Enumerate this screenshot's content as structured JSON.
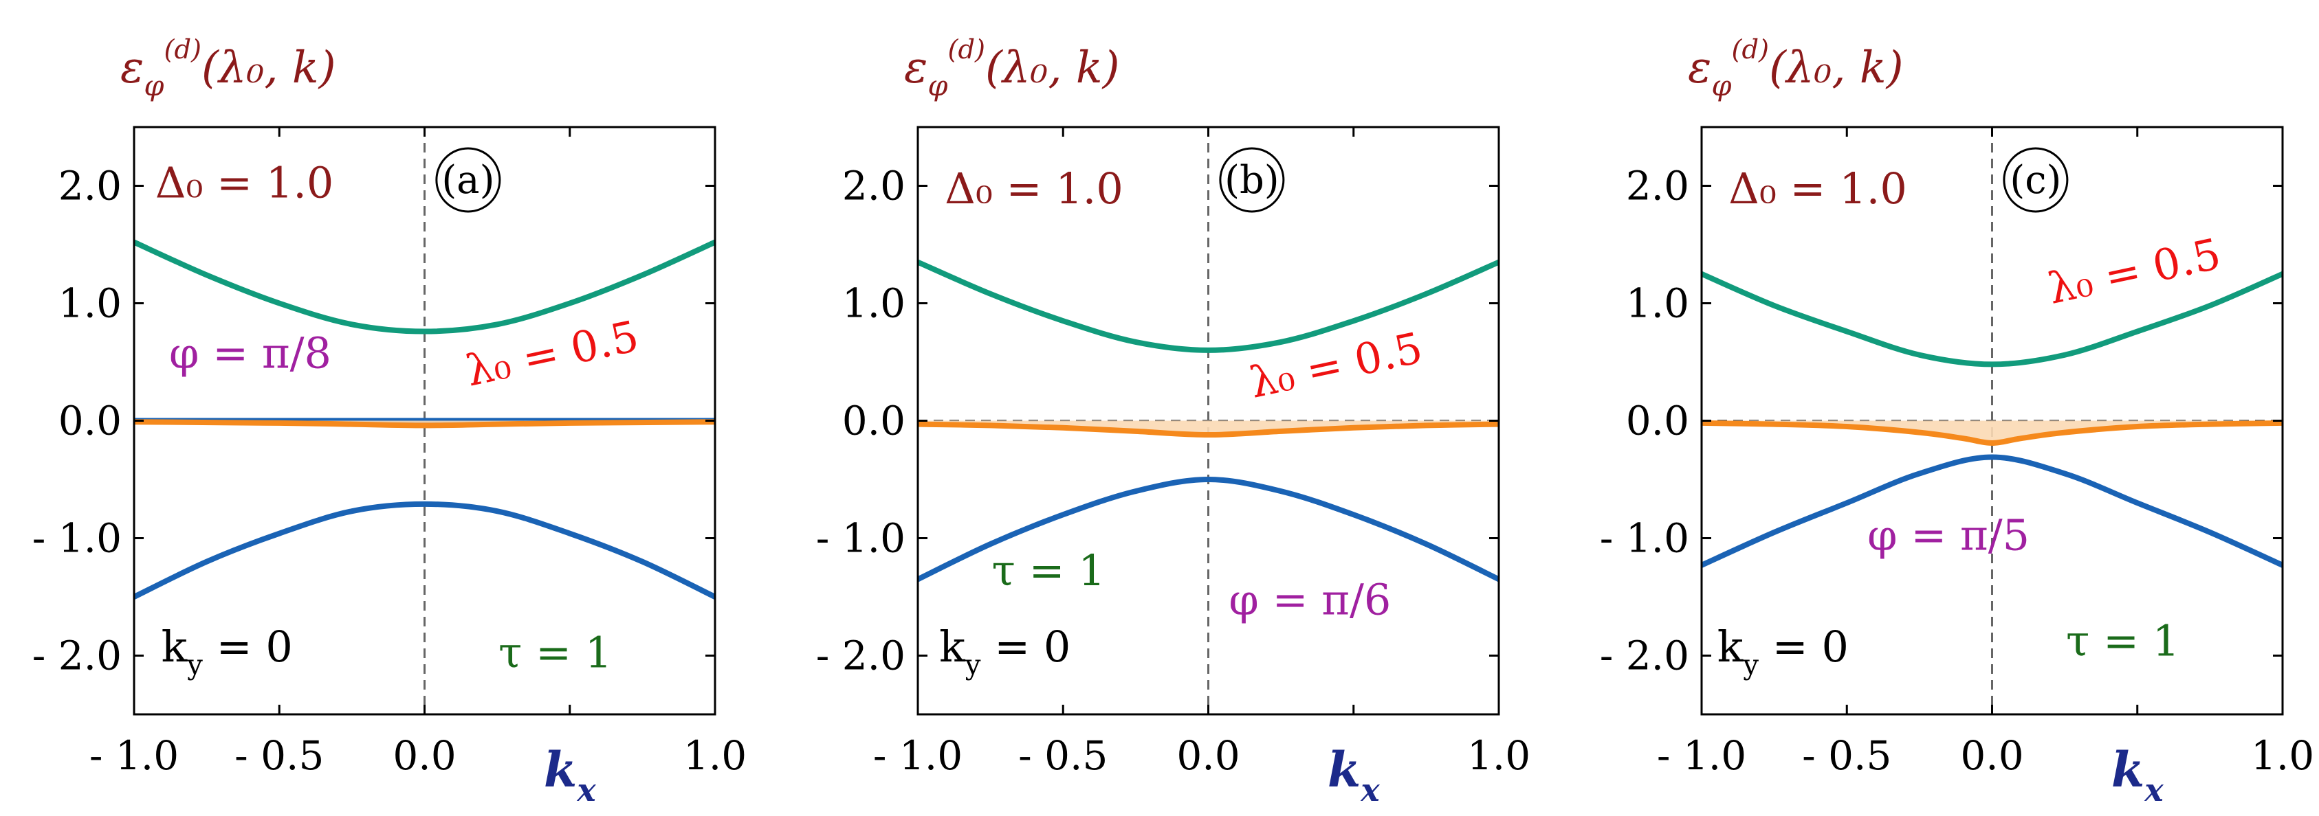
{
  "chart_data": [
    {
      "panel": "a",
      "type": "line",
      "panel_label": "(a)",
      "ylabel": "ε_φ^(d)(λ₀, k)",
      "xlabel": "k_x",
      "xlim": [
        -1.0,
        1.0
      ],
      "ylim": [
        -2.5,
        2.5
      ],
      "xticks": [
        -1.0,
        -0.5,
        0.0,
        0.5,
        1.0
      ],
      "xtick_labels": [
        "- 1.0",
        "- 0.5",
        "0.0",
        "",
        "1.0"
      ],
      "yticks": [
        2.0,
        1.0,
        0.0,
        -1.0,
        -2.0
      ],
      "ytick_labels": [
        "2.0",
        "1.0",
        "0.0",
        "- 1.0",
        "- 2.0"
      ],
      "vline_x": 0.0,
      "hline_y": 0.0,
      "annotations": [
        {
          "text": "Δ₀ = 1.0",
          "color": "#8b1a1a",
          "x": -0.62,
          "y": 1.9
        },
        {
          "text": "φ = π/8",
          "color": "#a020a0",
          "x": -0.6,
          "y": 0.45
        },
        {
          "text": "λ₀ = 0.5",
          "color": "#ee1111",
          "x": 0.45,
          "y": 0.45,
          "rotate": -12
        },
        {
          "text": "k_y = 0",
          "color": "#000000",
          "x": -0.68,
          "y": -2.05
        },
        {
          "text": "τ = 1",
          "color": "#1a6b1a",
          "x": 0.45,
          "y": -2.1
        }
      ],
      "series": [
        {
          "color": "#119b7c",
          "x": [
            -1.0,
            -0.75,
            -0.5,
            -0.25,
            0.0,
            0.25,
            0.5,
            0.75,
            1.0
          ],
          "y": [
            1.52,
            1.24,
            1.0,
            0.82,
            0.76,
            0.82,
            1.0,
            1.24,
            1.52
          ]
        },
        {
          "color": "#1a63b5",
          "x": [
            -1.0,
            1.0
          ],
          "y": [
            0.0,
            0.0
          ]
        },
        {
          "color": "#f5891c",
          "fill": true,
          "x": [
            -1.0,
            -0.5,
            -0.25,
            0.0,
            0.25,
            0.5,
            1.0
          ],
          "y": [
            -0.01,
            -0.02,
            -0.03,
            -0.04,
            -0.03,
            -0.02,
            -0.01
          ]
        },
        {
          "color": "#1a63b5",
          "x": [
            -1.0,
            -0.75,
            -0.5,
            -0.25,
            0.0,
            0.25,
            0.5,
            0.75,
            1.0
          ],
          "y": [
            -1.5,
            -1.2,
            -0.96,
            -0.77,
            -0.71,
            -0.77,
            -0.96,
            -1.2,
            -1.5
          ]
        }
      ]
    },
    {
      "panel": "b",
      "type": "line",
      "panel_label": "(b)",
      "ylabel": "ε_φ^(d)(λ₀, k)",
      "xlabel": "k_x",
      "xlim": [
        -1.0,
        1.0
      ],
      "ylim": [
        -2.5,
        2.5
      ],
      "xticks": [
        -1.0,
        -0.5,
        0.0,
        0.5,
        1.0
      ],
      "xtick_labels": [
        "- 1.0",
        "- 0.5",
        "0.0",
        "",
        "1.0"
      ],
      "yticks": [
        2.0,
        1.0,
        0.0,
        -1.0,
        -2.0
      ],
      "ytick_labels": [
        "2.0",
        "1.0",
        "0.0",
        "- 1.0",
        "- 2.0"
      ],
      "vline_x": 0.0,
      "hline_y": 0.0,
      "annotations": [
        {
          "text": "Δ₀ = 1.0",
          "color": "#8b1a1a",
          "x": -0.6,
          "y": 1.85
        },
        {
          "text": "λ₀ = 0.5",
          "color": "#ee1111",
          "x": 0.45,
          "y": 0.35,
          "rotate": -12
        },
        {
          "text": "τ = 1",
          "color": "#1a6b1a",
          "x": -0.55,
          "y": -1.4
        },
        {
          "text": "φ = π/6",
          "color": "#a020a0",
          "x": 0.35,
          "y": -1.65
        },
        {
          "text": "k_y = 0",
          "color": "#000000",
          "x": -0.7,
          "y": -2.05
        }
      ],
      "series": [
        {
          "color": "#119b7c",
          "x": [
            -1.0,
            -0.75,
            -0.5,
            -0.25,
            0.0,
            0.25,
            0.5,
            0.75,
            1.0
          ],
          "y": [
            1.35,
            1.08,
            0.85,
            0.67,
            0.6,
            0.67,
            0.85,
            1.08,
            1.35
          ]
        },
        {
          "color": "#f5891c",
          "fill": true,
          "x": [
            -1.0,
            -0.75,
            -0.5,
            -0.25,
            0.0,
            0.25,
            0.5,
            0.75,
            1.0
          ],
          "y": [
            -0.03,
            -0.04,
            -0.06,
            -0.09,
            -0.12,
            -0.09,
            -0.06,
            -0.04,
            -0.03
          ]
        },
        {
          "color": "#1a63b5",
          "x": [
            -1.0,
            -0.75,
            -0.5,
            -0.25,
            0.0,
            0.25,
            0.5,
            0.75,
            1.0
          ],
          "y": [
            -1.35,
            -1.05,
            -0.8,
            -0.6,
            -0.5,
            -0.6,
            -0.8,
            -1.05,
            -1.35
          ]
        }
      ]
    },
    {
      "panel": "c",
      "type": "line",
      "panel_label": "(c)",
      "ylabel": "ε_φ^(d)(λ₀, k)",
      "xlabel": "k_x",
      "xlim": [
        -1.0,
        1.0
      ],
      "ylim": [
        -2.5,
        2.5
      ],
      "xticks": [
        -1.0,
        -0.5,
        0.0,
        0.5,
        1.0
      ],
      "xtick_labels": [
        "- 1.0",
        "- 0.5",
        "0.0",
        "",
        "1.0"
      ],
      "yticks": [
        2.0,
        1.0,
        0.0,
        -1.0,
        -2.0
      ],
      "ytick_labels": [
        "2.0",
        "1.0",
        "0.0",
        "- 1.0",
        "- 2.0"
      ],
      "vline_x": 0.0,
      "hline_y": 0.0,
      "annotations": [
        {
          "text": "Δ₀ = 1.0",
          "color": "#8b1a1a",
          "x": -0.6,
          "y": 1.85
        },
        {
          "text": "λ₀ = 0.5",
          "color": "#ee1111",
          "x": 0.5,
          "y": 1.15,
          "rotate": -12
        },
        {
          "text": "φ = π/5",
          "color": "#a020a0",
          "x": -0.15,
          "y": -1.1
        },
        {
          "text": "k_y = 0",
          "color": "#000000",
          "x": -0.72,
          "y": -2.05
        },
        {
          "text": "τ = 1",
          "color": "#1a6b1a",
          "x": 0.45,
          "y": -2.0
        }
      ],
      "series": [
        {
          "color": "#119b7c",
          "x": [
            -1.0,
            -0.75,
            -0.5,
            -0.25,
            0.0,
            0.25,
            0.5,
            0.75,
            1.0
          ],
          "y": [
            1.25,
            0.98,
            0.76,
            0.56,
            0.48,
            0.56,
            0.76,
            0.98,
            1.25
          ]
        },
        {
          "color": "#f5891c",
          "fill": true,
          "x": [
            -1.0,
            -0.75,
            -0.5,
            -0.25,
            -0.1,
            0.0,
            0.1,
            0.25,
            0.5,
            0.75,
            1.0
          ],
          "y": [
            -0.02,
            -0.03,
            -0.05,
            -0.1,
            -0.15,
            -0.19,
            -0.15,
            -0.1,
            -0.05,
            -0.03,
            -0.02
          ]
        },
        {
          "color": "#1a63b5",
          "x": [
            -1.0,
            -0.75,
            -0.5,
            -0.25,
            0.0,
            0.25,
            0.5,
            0.75,
            1.0
          ],
          "y": [
            -1.23,
            -0.95,
            -0.7,
            -0.45,
            -0.31,
            -0.45,
            -0.7,
            -0.95,
            -1.23
          ]
        }
      ]
    }
  ]
}
